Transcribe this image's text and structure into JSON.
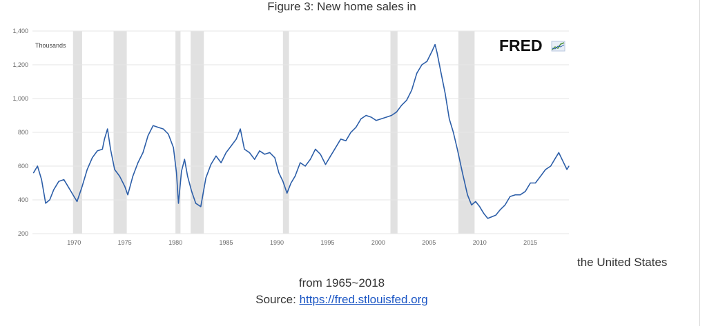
{
  "figure": {
    "title": "Figure 3: New home sales in",
    "caption_line_1": "the United States",
    "caption_line_2": "from 1965~2018",
    "source_label": "Source: ",
    "source_link": "https://fred.stlouisfed.org"
  },
  "logo": {
    "text": "FRED",
    "icon": "small-line-chart-icon"
  },
  "chart_data": {
    "type": "line",
    "title": "",
    "ylabel": "Thousands",
    "xlabel": "",
    "xlim": [
      1965.9,
      2018.8
    ],
    "ylim": [
      200,
      1400
    ],
    "x_ticks": [
      1970,
      1975,
      1980,
      1985,
      1990,
      1995,
      2000,
      2005,
      2010,
      2015
    ],
    "y_ticks": [
      200,
      400,
      600,
      800,
      1000,
      1200,
      1400
    ],
    "x_tick_labels": [
      "1970",
      "1975",
      "1980",
      "1985",
      "1990",
      "1995",
      "2000",
      "2005",
      "2010",
      "2015"
    ],
    "y_tick_labels": [
      "200",
      "400",
      "600",
      "800",
      "1,000",
      "1,200",
      "1,400"
    ],
    "grid": true,
    "line_color": "#2c5ea8",
    "recession_color": "#e1e1e1",
    "recessions": [
      [
        1969.9,
        1970.8
      ],
      [
        1973.9,
        1975.2
      ],
      [
        1980.0,
        1980.5
      ],
      [
        1981.5,
        1982.8
      ],
      [
        1990.6,
        1991.2
      ],
      [
        2001.2,
        2001.9
      ],
      [
        2007.9,
        2009.5
      ]
    ],
    "series": [
      {
        "values": [
          [
            1966.0,
            560
          ],
          [
            1966.4,
            600
          ],
          [
            1966.8,
            520
          ],
          [
            1967.2,
            380
          ],
          [
            1967.6,
            400
          ],
          [
            1968.0,
            460
          ],
          [
            1968.5,
            510
          ],
          [
            1969.0,
            520
          ],
          [
            1969.5,
            470
          ],
          [
            1970.0,
            420
          ],
          [
            1970.3,
            390
          ],
          [
            1970.8,
            480
          ],
          [
            1971.3,
            580
          ],
          [
            1971.8,
            650
          ],
          [
            1972.3,
            690
          ],
          [
            1972.8,
            700
          ],
          [
            1973.0,
            760
          ],
          [
            1973.3,
            820
          ],
          [
            1973.6,
            700
          ],
          [
            1974.0,
            580
          ],
          [
            1974.5,
            540
          ],
          [
            1975.0,
            480
          ],
          [
            1975.3,
            430
          ],
          [
            1975.8,
            540
          ],
          [
            1976.3,
            620
          ],
          [
            1976.8,
            680
          ],
          [
            1977.3,
            780
          ],
          [
            1977.8,
            840
          ],
          [
            1978.3,
            830
          ],
          [
            1978.8,
            820
          ],
          [
            1979.3,
            790
          ],
          [
            1979.8,
            710
          ],
          [
            1980.1,
            560
          ],
          [
            1980.3,
            380
          ],
          [
            1980.6,
            570
          ],
          [
            1980.9,
            640
          ],
          [
            1981.2,
            540
          ],
          [
            1981.6,
            450
          ],
          [
            1982.0,
            380
          ],
          [
            1982.5,
            360
          ],
          [
            1983.0,
            530
          ],
          [
            1983.5,
            610
          ],
          [
            1984.0,
            660
          ],
          [
            1984.5,
            620
          ],
          [
            1985.0,
            680
          ],
          [
            1985.5,
            720
          ],
          [
            1986.0,
            760
          ],
          [
            1986.4,
            820
          ],
          [
            1986.8,
            700
          ],
          [
            1987.3,
            680
          ],
          [
            1987.8,
            640
          ],
          [
            1988.3,
            690
          ],
          [
            1988.8,
            670
          ],
          [
            1989.3,
            680
          ],
          [
            1989.8,
            650
          ],
          [
            1990.2,
            560
          ],
          [
            1990.6,
            510
          ],
          [
            1991.0,
            440
          ],
          [
            1991.4,
            500
          ],
          [
            1991.8,
            540
          ],
          [
            1992.3,
            620
          ],
          [
            1992.8,
            600
          ],
          [
            1993.3,
            640
          ],
          [
            1993.8,
            700
          ],
          [
            1994.3,
            670
          ],
          [
            1994.8,
            610
          ],
          [
            1995.3,
            660
          ],
          [
            1995.8,
            710
          ],
          [
            1996.3,
            760
          ],
          [
            1996.8,
            750
          ],
          [
            1997.3,
            800
          ],
          [
            1997.8,
            830
          ],
          [
            1998.3,
            880
          ],
          [
            1998.8,
            900
          ],
          [
            1999.3,
            890
          ],
          [
            1999.8,
            870
          ],
          [
            2000.3,
            880
          ],
          [
            2000.8,
            890
          ],
          [
            2001.3,
            900
          ],
          [
            2001.8,
            920
          ],
          [
            2002.3,
            960
          ],
          [
            2002.8,
            990
          ],
          [
            2003.3,
            1050
          ],
          [
            2003.8,
            1150
          ],
          [
            2004.3,
            1200
          ],
          [
            2004.8,
            1220
          ],
          [
            2005.3,
            1280
          ],
          [
            2005.6,
            1320
          ],
          [
            2005.8,
            1270
          ],
          [
            2006.2,
            1150
          ],
          [
            2006.6,
            1030
          ],
          [
            2007.0,
            880
          ],
          [
            2007.4,
            800
          ],
          [
            2007.8,
            700
          ],
          [
            2008.3,
            560
          ],
          [
            2008.8,
            430
          ],
          [
            2009.2,
            370
          ],
          [
            2009.6,
            390
          ],
          [
            2010.0,
            360
          ],
          [
            2010.4,
            320
          ],
          [
            2010.8,
            290
          ],
          [
            2011.2,
            300
          ],
          [
            2011.6,
            310
          ],
          [
            2012.0,
            340
          ],
          [
            2012.5,
            370
          ],
          [
            2013.0,
            420
          ],
          [
            2013.5,
            430
          ],
          [
            2014.0,
            430
          ],
          [
            2014.5,
            450
          ],
          [
            2015.0,
            500
          ],
          [
            2015.5,
            500
          ],
          [
            2016.0,
            540
          ],
          [
            2016.5,
            580
          ],
          [
            2017.0,
            600
          ],
          [
            2017.4,
            640
          ],
          [
            2017.8,
            680
          ],
          [
            2018.2,
            630
          ],
          [
            2018.6,
            580
          ],
          [
            2018.8,
            600
          ]
        ]
      }
    ]
  }
}
